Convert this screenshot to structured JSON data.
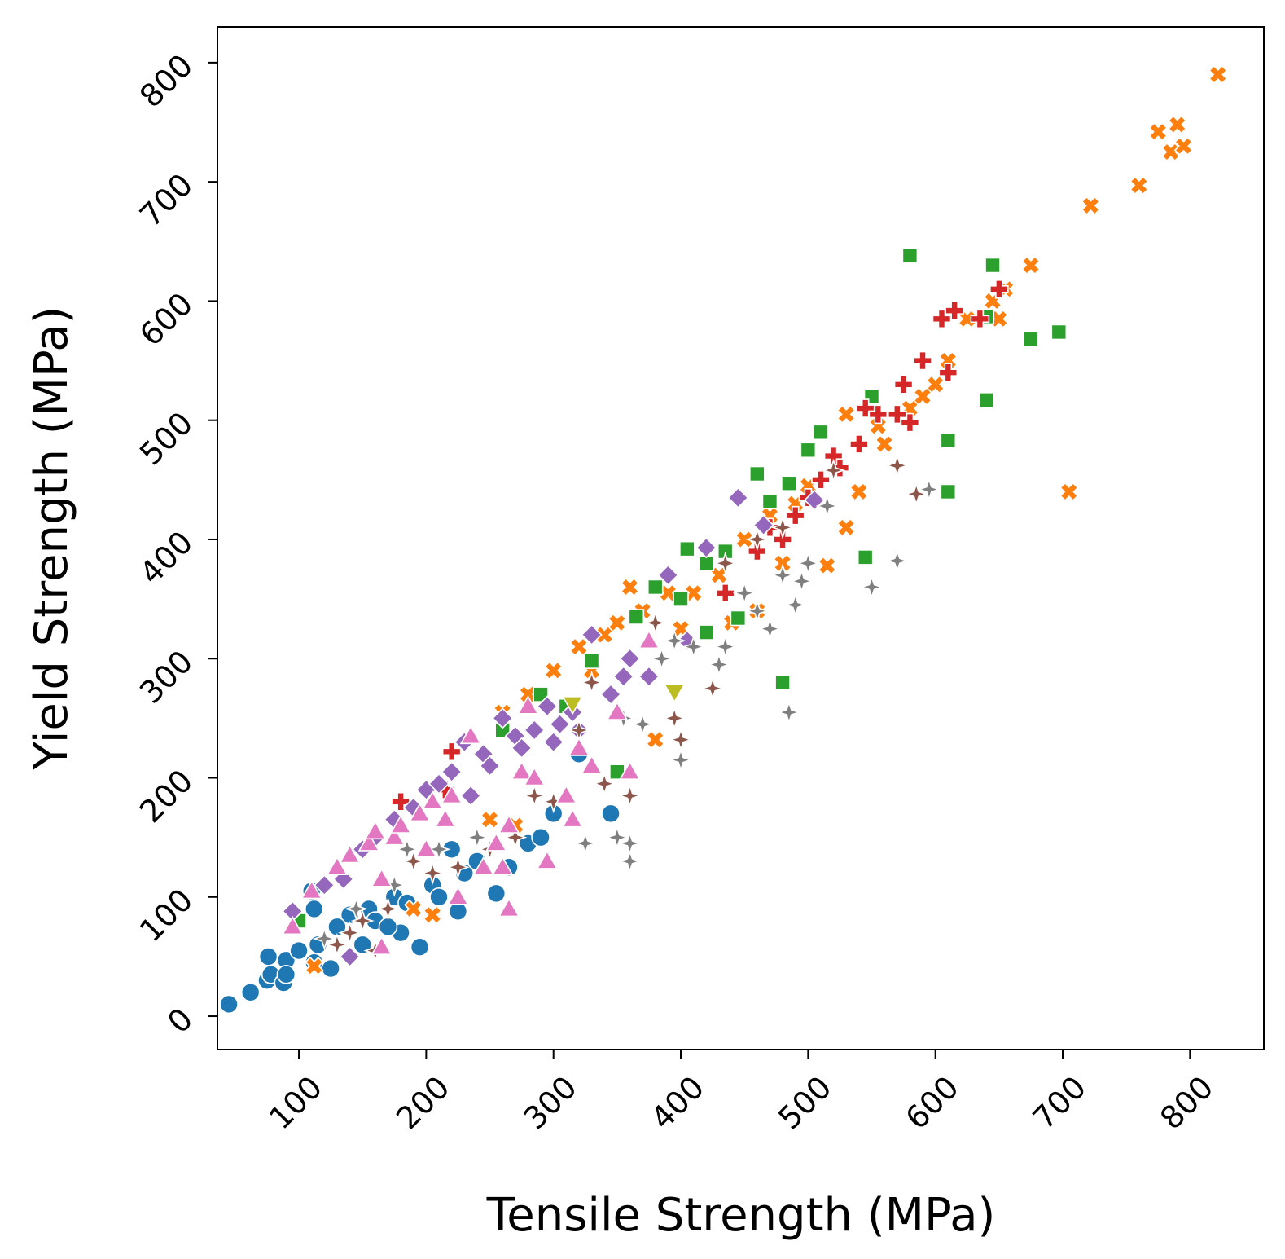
{
  "chart_data": {
    "type": "scatter",
    "xlabel": "Tensile Strength (MPa)",
    "ylabel": "Yield Strength (MPa)",
    "xlim": [
      36,
      858
    ],
    "ylim": [
      -28,
      830
    ],
    "xticks": [
      100,
      200,
      300,
      400,
      500,
      600,
      700,
      800
    ],
    "yticks": [
      0,
      100,
      200,
      300,
      400,
      500,
      600,
      700,
      800
    ],
    "grid": false,
    "legend": "none",
    "series": [
      {
        "marker": "circle",
        "color": "#1f77b4",
        "points": [
          [
            45,
            10
          ],
          [
            62,
            20
          ],
          [
            75,
            30
          ],
          [
            76,
            50
          ],
          [
            78,
            35
          ],
          [
            88,
            28
          ],
          [
            90,
            47
          ],
          [
            90,
            35
          ],
          [
            112,
            45
          ],
          [
            112,
            90
          ],
          [
            125,
            40
          ],
          [
            110,
            105
          ],
          [
            140,
            85
          ],
          [
            150,
            60
          ],
          [
            155,
            90
          ],
          [
            175,
            100
          ],
          [
            180,
            70
          ],
          [
            195,
            58
          ],
          [
            205,
            110
          ],
          [
            220,
            140
          ],
          [
            225,
            88
          ],
          [
            230,
            120
          ],
          [
            255,
            103
          ],
          [
            265,
            125
          ],
          [
            280,
            145
          ],
          [
            290,
            150
          ],
          [
            300,
            170
          ],
          [
            320,
            220
          ],
          [
            345,
            170
          ],
          [
            115,
            60
          ],
          [
            130,
            75
          ],
          [
            160,
            80
          ],
          [
            185,
            95
          ],
          [
            240,
            130
          ],
          [
            100,
            55
          ],
          [
            170,
            75
          ],
          [
            210,
            100
          ]
        ]
      },
      {
        "marker": "x",
        "color": "#ff7f0e",
        "points": [
          [
            112,
            42
          ],
          [
            190,
            90
          ],
          [
            205,
            85
          ],
          [
            250,
            165
          ],
          [
            270,
            160
          ],
          [
            300,
            290
          ],
          [
            320,
            310
          ],
          [
            340,
            320
          ],
          [
            360,
            360
          ],
          [
            380,
            232
          ],
          [
            400,
            325
          ],
          [
            410,
            355
          ],
          [
            430,
            370
          ],
          [
            440,
            330
          ],
          [
            460,
            340
          ],
          [
            480,
            380
          ],
          [
            500,
            445
          ],
          [
            515,
            378
          ],
          [
            530,
            505
          ],
          [
            530,
            410
          ],
          [
            540,
            440
          ],
          [
            555,
            495
          ],
          [
            580,
            510
          ],
          [
            600,
            530
          ],
          [
            610,
            550
          ],
          [
            625,
            585
          ],
          [
            645,
            600
          ],
          [
            655,
            610
          ],
          [
            675,
            630
          ],
          [
            705,
            440
          ],
          [
            722,
            680
          ],
          [
            760,
            697
          ],
          [
            775,
            742
          ],
          [
            785,
            725
          ],
          [
            790,
            748
          ],
          [
            795,
            730
          ],
          [
            822,
            790
          ],
          [
            260,
            255
          ],
          [
            280,
            270
          ],
          [
            350,
            330
          ],
          [
            390,
            355
          ],
          [
            420,
            380
          ],
          [
            450,
            400
          ],
          [
            470,
            420
          ],
          [
            490,
            430
          ],
          [
            560,
            480
          ],
          [
            590,
            520
          ],
          [
            650,
            585
          ],
          [
            330,
            290
          ],
          [
            370,
            340
          ]
        ]
      },
      {
        "marker": "square",
        "color": "#2ca02c",
        "points": [
          [
            100,
            80
          ],
          [
            290,
            270
          ],
          [
            330,
            298
          ],
          [
            350,
            205
          ],
          [
            365,
            335
          ],
          [
            380,
            360
          ],
          [
            400,
            350
          ],
          [
            405,
            392
          ],
          [
            420,
            322
          ],
          [
            445,
            334
          ],
          [
            460,
            455
          ],
          [
            470,
            432
          ],
          [
            480,
            280
          ],
          [
            485,
            447
          ],
          [
            500,
            475
          ],
          [
            510,
            490
          ],
          [
            545,
            385
          ],
          [
            550,
            520
          ],
          [
            580,
            638
          ],
          [
            610,
            440
          ],
          [
            610,
            483
          ],
          [
            640,
            517
          ],
          [
            645,
            630
          ],
          [
            675,
            568
          ],
          [
            697,
            574
          ],
          [
            640,
            587
          ],
          [
            435,
            390
          ],
          [
            420,
            380
          ],
          [
            260,
            240
          ],
          [
            310,
            260
          ]
        ]
      },
      {
        "marker": "plus",
        "color": "#d62728",
        "points": [
          [
            220,
            222
          ],
          [
            480,
            400
          ],
          [
            490,
            420
          ],
          [
            500,
            435
          ],
          [
            510,
            450
          ],
          [
            520,
            470
          ],
          [
            525,
            460
          ],
          [
            540,
            480
          ],
          [
            545,
            510
          ],
          [
            555,
            505
          ],
          [
            570,
            505
          ],
          [
            575,
            530
          ],
          [
            580,
            498
          ],
          [
            590,
            550
          ],
          [
            605,
            585
          ],
          [
            610,
            540
          ],
          [
            615,
            592
          ],
          [
            635,
            585
          ],
          [
            650,
            610
          ],
          [
            435,
            355
          ],
          [
            460,
            390
          ],
          [
            470,
            410
          ],
          [
            180,
            180
          ],
          [
            215,
            190
          ]
        ]
      },
      {
        "marker": "diamond",
        "color": "#9467bd",
        "points": [
          [
            95,
            88
          ],
          [
            120,
            110
          ],
          [
            135,
            115
          ],
          [
            150,
            140
          ],
          [
            160,
            150
          ],
          [
            175,
            165
          ],
          [
            190,
            175
          ],
          [
            200,
            190
          ],
          [
            210,
            195
          ],
          [
            220,
            205
          ],
          [
            235,
            185
          ],
          [
            245,
            220
          ],
          [
            260,
            250
          ],
          [
            270,
            235
          ],
          [
            285,
            240
          ],
          [
            295,
            260
          ],
          [
            305,
            245
          ],
          [
            315,
            255
          ],
          [
            330,
            320
          ],
          [
            345,
            270
          ],
          [
            360,
            300
          ],
          [
            375,
            285
          ],
          [
            390,
            370
          ],
          [
            405,
            315
          ],
          [
            420,
            393
          ],
          [
            445,
            435
          ],
          [
            465,
            412
          ],
          [
            505,
            433
          ],
          [
            140,
            50
          ],
          [
            230,
            230
          ],
          [
            250,
            210
          ],
          [
            275,
            225
          ],
          [
            300,
            230
          ],
          [
            320,
            240
          ],
          [
            355,
            285
          ]
        ]
      },
      {
        "marker": "star4",
        "color": "#8c564b",
        "points": [
          [
            130,
            60
          ],
          [
            150,
            80
          ],
          [
            170,
            90
          ],
          [
            190,
            130
          ],
          [
            205,
            120
          ],
          [
            225,
            125
          ],
          [
            250,
            140
          ],
          [
            270,
            150
          ],
          [
            285,
            185
          ],
          [
            300,
            180
          ],
          [
            320,
            240
          ],
          [
            330,
            280
          ],
          [
            340,
            195
          ],
          [
            360,
            185
          ],
          [
            380,
            330
          ],
          [
            395,
            250
          ],
          [
            400,
            232
          ],
          [
            425,
            275
          ],
          [
            435,
            380
          ],
          [
            460,
            400
          ],
          [
            480,
            410
          ],
          [
            570,
            462
          ],
          [
            585,
            438
          ],
          [
            520,
            458
          ],
          [
            140,
            70
          ],
          [
            160,
            55
          ]
        ]
      },
      {
        "marker": "star4",
        "color": "#7f7f7f",
        "points": [
          [
            120,
            65
          ],
          [
            145,
            90
          ],
          [
            175,
            110
          ],
          [
            185,
            140
          ],
          [
            210,
            140
          ],
          [
            240,
            150
          ],
          [
            325,
            145
          ],
          [
            350,
            150
          ],
          [
            360,
            130
          ],
          [
            360,
            145
          ],
          [
            385,
            300
          ],
          [
            395,
            315
          ],
          [
            400,
            215
          ],
          [
            410,
            310
          ],
          [
            430,
            295
          ],
          [
            435,
            310
          ],
          [
            450,
            355
          ],
          [
            460,
            340
          ],
          [
            470,
            325
          ],
          [
            480,
            370
          ],
          [
            490,
            345
          ],
          [
            495,
            365
          ],
          [
            500,
            380
          ],
          [
            515,
            428
          ],
          [
            485,
            255
          ],
          [
            550,
            360
          ],
          [
            570,
            382
          ],
          [
            595,
            442
          ],
          [
            355,
            250
          ],
          [
            370,
            245
          ]
        ]
      },
      {
        "marker": "triangle-up",
        "color": "#e377c2",
        "points": [
          [
            95,
            75
          ],
          [
            110,
            105
          ],
          [
            130,
            125
          ],
          [
            140,
            135
          ],
          [
            155,
            145
          ],
          [
            160,
            155
          ],
          [
            175,
            150
          ],
          [
            180,
            160
          ],
          [
            195,
            170
          ],
          [
            205,
            180
          ],
          [
            215,
            165
          ],
          [
            220,
            185
          ],
          [
            235,
            235
          ],
          [
            245,
            125
          ],
          [
            255,
            145
          ],
          [
            260,
            125
          ],
          [
            265,
            160
          ],
          [
            275,
            205
          ],
          [
            285,
            200
          ],
          [
            295,
            130
          ],
          [
            310,
            185
          ],
          [
            315,
            165
          ],
          [
            320,
            225
          ],
          [
            330,
            210
          ],
          [
            350,
            255
          ],
          [
            360,
            205
          ],
          [
            375,
            315
          ],
          [
            165,
            115
          ],
          [
            200,
            140
          ],
          [
            225,
            100
          ],
          [
            265,
            90
          ],
          [
            280,
            260
          ],
          [
            165,
            58
          ]
        ]
      },
      {
        "marker": "triangle-down",
        "color": "#bcbd22",
        "points": [
          [
            315,
            262
          ],
          [
            395,
            272
          ]
        ]
      }
    ]
  }
}
